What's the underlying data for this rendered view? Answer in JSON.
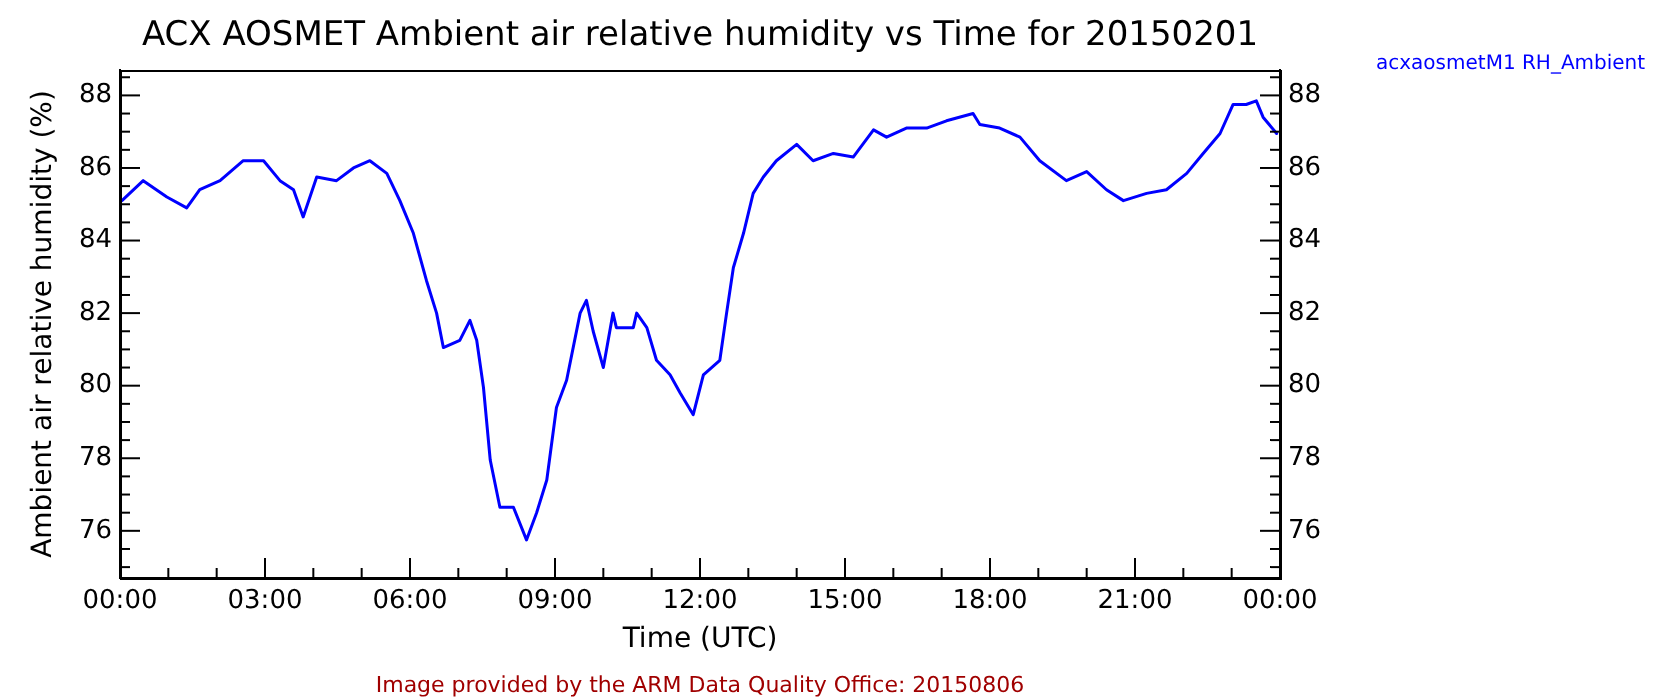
{
  "chart_data": {
    "type": "line",
    "title": "ACX AOSMET Ambient air relative humidity vs Time for 20150201",
    "xlabel": "Time (UTC)",
    "ylabel": "Ambient air relative humidity (%)",
    "annotations": [
      "Image provided by the ARM Data Quality Office: 20150806"
    ],
    "legend": "top right",
    "marker": "none",
    "line_style": "solid",
    "grid": false,
    "x": [
      0.04,
      0.48,
      0.97,
      1.38,
      1.65,
      2.07,
      2.55,
      2.97,
      3.31,
      3.59,
      3.79,
      4.07,
      4.48,
      4.83,
      5.17,
      5.52,
      5.79,
      6.07,
      6.34,
      6.55,
      6.69,
      7.03,
      7.24,
      7.38,
      7.52,
      7.66,
      7.86,
      8.14,
      8.41,
      8.62,
      8.83,
      9.03,
      9.24,
      9.52,
      9.65,
      9.79,
      10.0,
      10.2,
      10.27,
      10.62,
      10.69,
      10.9,
      11.1,
      11.38,
      11.59,
      11.86,
      12.07,
      12.41,
      12.55,
      12.69,
      12.9,
      13.1,
      13.31,
      13.58,
      14.0,
      14.34,
      14.76,
      15.17,
      15.59,
      15.86,
      16.27,
      16.69,
      17.1,
      17.65,
      17.79,
      18.2,
      18.62,
      19.03,
      19.58,
      20.0,
      20.41,
      20.76,
      21.24,
      21.65,
      22.07,
      22.41,
      22.76,
      23.03,
      23.3,
      23.51,
      23.65,
      23.93
    ],
    "series": [
      {
        "name": "acxaosmetM1 RH_Ambient",
        "color": "#0000ff",
        "values": [
          85.1,
          85.65,
          85.2,
          84.9,
          85.4,
          85.65,
          86.2,
          86.2,
          85.65,
          85.4,
          84.65,
          85.75,
          85.65,
          86.0,
          86.2,
          85.85,
          85.1,
          84.2,
          82.9,
          82.0,
          81.05,
          81.25,
          81.8,
          81.25,
          79.95,
          77.95,
          76.65,
          76.65,
          75.75,
          76.5,
          77.4,
          79.4,
          80.15,
          82.0,
          82.35,
          81.5,
          80.5,
          82.0,
          81.6,
          81.6,
          82.0,
          81.6,
          80.7,
          80.3,
          79.8,
          79.2,
          80.3,
          80.7,
          82.0,
          83.25,
          84.2,
          85.3,
          85.75,
          86.2,
          86.65,
          86.2,
          86.4,
          86.3,
          87.05,
          86.85,
          87.1,
          87.1,
          87.3,
          87.5,
          87.2,
          87.1,
          86.85,
          86.2,
          85.65,
          85.9,
          85.4,
          85.1,
          85.3,
          85.4,
          85.85,
          86.4,
          86.95,
          87.75,
          87.75,
          87.85,
          87.4,
          86.95
        ]
      }
    ],
    "xlim": [
      0,
      24
    ],
    "xticks": [
      {
        "value": 0,
        "label": "00:00"
      },
      {
        "value": 1,
        "label": null
      },
      {
        "value": 2,
        "label": null
      },
      {
        "value": 3,
        "label": "03:00"
      },
      {
        "value": 4,
        "label": null
      },
      {
        "value": 5,
        "label": null
      },
      {
        "value": 6,
        "label": "06:00"
      },
      {
        "value": 7,
        "label": null
      },
      {
        "value": 8,
        "label": null
      },
      {
        "value": 9,
        "label": "09:00"
      },
      {
        "value": 10,
        "label": null
      },
      {
        "value": 11,
        "label": null
      },
      {
        "value": 12,
        "label": "12:00"
      },
      {
        "value": 13,
        "label": null
      },
      {
        "value": 14,
        "label": null
      },
      {
        "value": 15,
        "label": "15:00"
      },
      {
        "value": 16,
        "label": null
      },
      {
        "value": 17,
        "label": null
      },
      {
        "value": 18,
        "label": "18:00"
      },
      {
        "value": 19,
        "label": null
      },
      {
        "value": 20,
        "label": null
      },
      {
        "value": 21,
        "label": "21:00"
      },
      {
        "value": 22,
        "label": null
      },
      {
        "value": 23,
        "label": null
      },
      {
        "value": 24,
        "label": "00:00"
      }
    ],
    "ylim": [
      74.7,
      88.7
    ],
    "yticks": [
      {
        "value": 75,
        "label": null
      },
      {
        "value": 75.5,
        "label": null
      },
      76,
      {
        "value": 76.5,
        "label": null
      },
      {
        "value": 77,
        "label": null
      },
      {
        "value": 77.5,
        "label": null
      },
      78,
      {
        "value": 78.5,
        "label": null
      },
      {
        "value": 79,
        "label": null
      },
      {
        "value": 79.5,
        "label": null
      },
      80,
      {
        "value": 80.5,
        "label": null
      },
      {
        "value": 81,
        "label": null
      },
      {
        "value": 81.5,
        "label": null
      },
      82,
      {
        "value": 82.5,
        "label": null
      },
      {
        "value": 83,
        "label": null
      },
      {
        "value": 83.5,
        "label": null
      },
      84,
      {
        "value": 84.5,
        "label": null
      },
      {
        "value": 85,
        "label": null
      },
      {
        "value": 85.5,
        "label": null
      },
      86,
      {
        "value": 86.5,
        "label": null
      },
      {
        "value": 87,
        "label": null
      },
      {
        "value": 87.5,
        "label": null
      },
      88,
      {
        "value": 88.5,
        "label": null
      }
    ],
    "y2lim": [
      74.7,
      88.7
    ],
    "y2ticks": [
      {
        "value": 75,
        "label": null
      },
      {
        "value": 75.5,
        "label": null
      },
      76,
      {
        "value": 76.5,
        "label": null
      },
      {
        "value": 77,
        "label": null
      },
      {
        "value": 77.5,
        "label": null
      },
      78,
      {
        "value": 78.5,
        "label": null
      },
      {
        "value": 79,
        "label": null
      },
      {
        "value": 79.5,
        "label": null
      },
      80,
      {
        "value": 80.5,
        "label": null
      },
      {
        "value": 81,
        "label": null
      },
      {
        "value": 81.5,
        "label": null
      },
      82,
      {
        "value": 82.5,
        "label": null
      },
      {
        "value": 83,
        "label": null
      },
      {
        "value": 83.5,
        "label": null
      },
      84,
      {
        "value": 84.5,
        "label": null
      },
      {
        "value": 85,
        "label": null
      },
      {
        "value": 85.5,
        "label": null
      },
      86,
      {
        "value": 86.5,
        "label": null
      },
      {
        "value": 87,
        "label": null
      },
      {
        "value": 87.5,
        "label": null
      },
      88,
      {
        "value": 88.5,
        "label": null
      }
    ]
  }
}
